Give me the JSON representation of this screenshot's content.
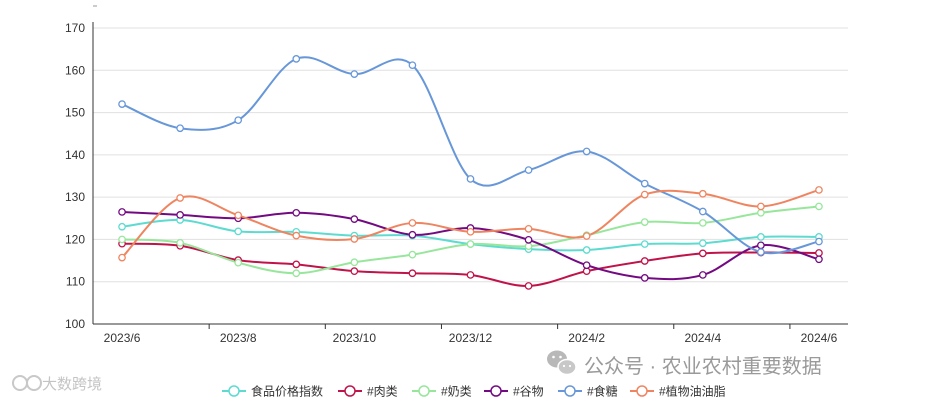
{
  "chart_data": {
    "type": "line",
    "categories": [
      "2023/6",
      "2023/7",
      "2023/8",
      "2023/9",
      "2023/10",
      "2023/11",
      "2023/12",
      "2024/1",
      "2024/2",
      "2024/3",
      "2024/4",
      "2024/5",
      "2024/6"
    ],
    "x_tick_labels": [
      "2023/6",
      "2023/8",
      "2023/10",
      "2023/12",
      "2024/2",
      "2024/4",
      "2024/6"
    ],
    "y_ticks": [
      100,
      110,
      120,
      130,
      140,
      150,
      160,
      170
    ],
    "ylim": [
      100,
      170
    ],
    "grid": true,
    "legend_position": "bottom",
    "smooth": true,
    "series": [
      {
        "name": "食品价格指数",
        "color": "#5ddbd0",
        "values": [
          123.0,
          124.6,
          121.9,
          121.8,
          120.9,
          120.9,
          118.9,
          117.7,
          117.5,
          118.9,
          119.1,
          120.6,
          120.6
        ]
      },
      {
        "name": "#肉类",
        "color": "#c0134a",
        "values": [
          119.0,
          118.5,
          115.1,
          114.1,
          112.5,
          112.0,
          111.6,
          109.0,
          112.5,
          114.9,
          116.7,
          116.9,
          116.8
        ]
      },
      {
        "name": "#奶类",
        "color": "#97e69b",
        "values": [
          120.0,
          119.2,
          114.5,
          112.0,
          114.6,
          116.4,
          118.9,
          118.4,
          121.0,
          124.1,
          123.9,
          126.3,
          127.8
        ]
      },
      {
        "name": "#谷物",
        "color": "#730a82",
        "values": [
          126.5,
          125.8,
          125.0,
          126.3,
          124.8,
          121.1,
          122.7,
          119.9,
          113.9,
          110.9,
          111.6,
          118.6,
          115.3
        ]
      },
      {
        "name": "#食糖",
        "color": "#6797d8",
        "values": [
          152.0,
          146.3,
          148.2,
          162.7,
          159.1,
          161.2,
          134.3,
          136.4,
          140.8,
          133.2,
          126.6,
          117.0,
          119.5
        ]
      },
      {
        "name": "#植物油油脂",
        "color": "#ef8560",
        "values": [
          115.7,
          129.8,
          125.7,
          120.9,
          120.1,
          123.9,
          121.8,
          122.5,
          120.8,
          130.6,
          130.8,
          127.8,
          131.7
        ]
      }
    ]
  },
  "watermark": {
    "main_text": "公众号 · 农业农村重要数据",
    "corner_text": "大数跨境"
  },
  "colors": {
    "axis": "#333333",
    "grid": "#e0e0e0"
  }
}
